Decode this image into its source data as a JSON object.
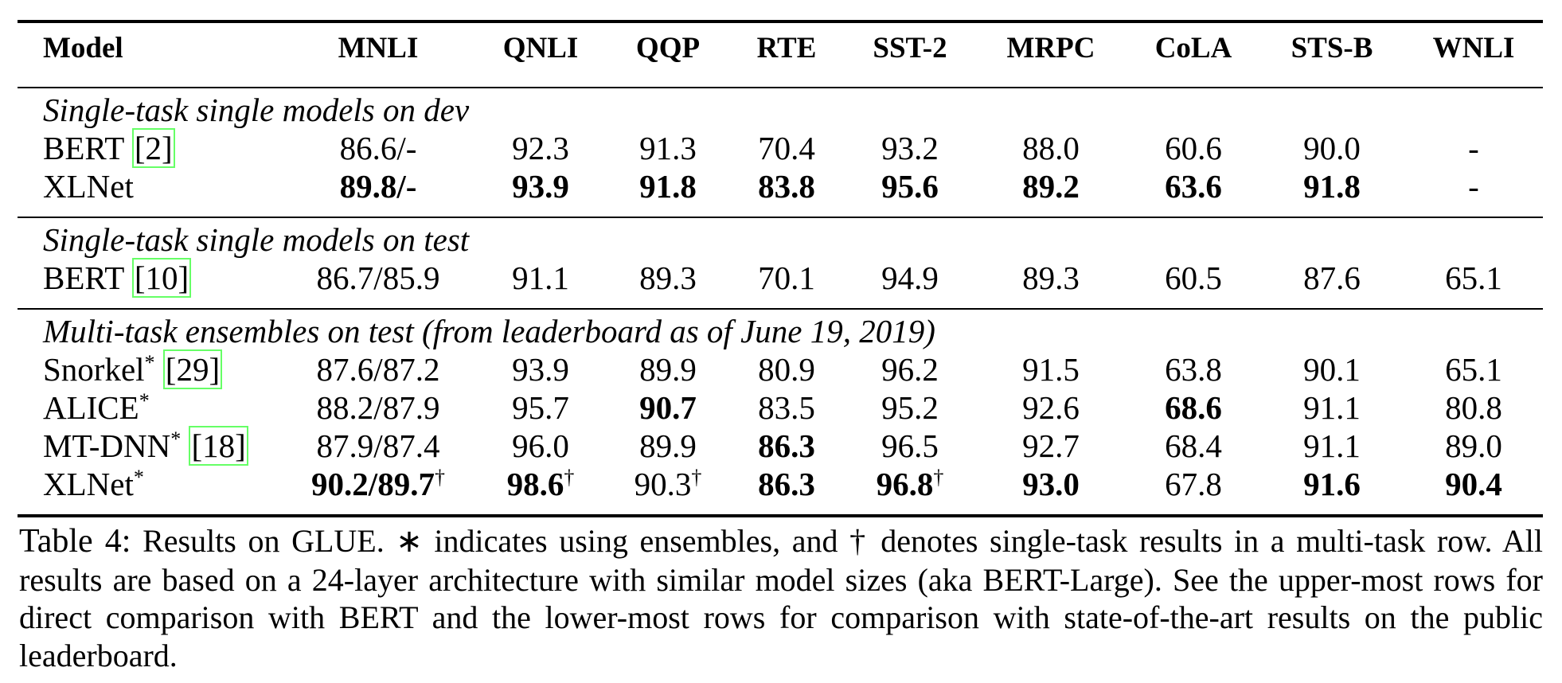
{
  "table": {
    "header": [
      "Model",
      "MNLI",
      "QNLI",
      "QQP",
      "RTE",
      "SST-2",
      "MRPC",
      "CoLA",
      "STS-B",
      "WNLI"
    ],
    "sections": [
      {
        "title": "Single-task single models on dev",
        "rows": [
          {
            "model": "BERT",
            "ref": "[2]",
            "cells": [
              "86.6/-",
              "92.3",
              "91.3",
              "70.4",
              "93.2",
              "88.0",
              "60.6",
              "90.0",
              "-"
            ]
          },
          {
            "model": "XLNet",
            "cells": [
              {
                "text": "89.8/-",
                "bold": true
              },
              {
                "text": "93.9",
                "bold": true
              },
              {
                "text": "91.8",
                "bold": true
              },
              {
                "text": "83.8",
                "bold": true
              },
              {
                "text": "95.6",
                "bold": true
              },
              {
                "text": "89.2",
                "bold": true
              },
              {
                "text": "63.6",
                "bold": true
              },
              {
                "text": "91.8",
                "bold": true
              },
              "-"
            ]
          }
        ]
      },
      {
        "title": "Single-task single models on test",
        "rows": [
          {
            "model": "BERT",
            "ref": "[10]",
            "cells": [
              "86.7/85.9",
              "91.1",
              "89.3",
              "70.1",
              "94.9",
              "89.3",
              "60.5",
              "87.6",
              "65.1"
            ]
          }
        ]
      },
      {
        "title": "Multi-task ensembles on test (from leaderboard as of June 19, 2019)",
        "rows": [
          {
            "model": "Snorkel",
            "model_sup": "*",
            "ref": "[29]",
            "cells": [
              "87.6/87.2",
              "93.9",
              "89.9",
              "80.9",
              "96.2",
              "91.5",
              "63.8",
              "90.1",
              "65.1"
            ]
          },
          {
            "model": "ALICE",
            "model_sup": "*",
            "cells": [
              "88.2/87.9",
              "95.7",
              {
                "text": "90.7",
                "bold": true
              },
              "83.5",
              "95.2",
              "92.6",
              {
                "text": "68.6",
                "bold": true
              },
              "91.1",
              "80.8"
            ]
          },
          {
            "model": "MT-DNN",
            "model_sup": "*",
            "ref": "[18]",
            "cells": [
              "87.9/87.4",
              "96.0",
              "89.9",
              {
                "text": "86.3",
                "bold": true
              },
              "96.5",
              "92.7",
              "68.4",
              "91.1",
              "89.0"
            ]
          },
          {
            "model": "XLNet",
            "model_sup": "*",
            "cells": [
              {
                "text": "90.2/89.7",
                "bold": true,
                "sup": "†"
              },
              {
                "text": "98.6",
                "bold": true,
                "sup": "†"
              },
              {
                "text": "90.3",
                "sup": "†"
              },
              {
                "text": "86.3",
                "bold": true
              },
              {
                "text": "96.8",
                "bold": true,
                "sup": "†"
              },
              {
                "text": "93.0",
                "bold": true
              },
              "67.8",
              {
                "text": "91.6",
                "bold": true
              },
              {
                "text": "90.4",
                "bold": true
              }
            ]
          }
        ]
      }
    ]
  },
  "caption": {
    "label": "Table 4:",
    "text": "Results on GLUE. ∗ indicates using ensembles, and † denotes single-task results in a multi-task row. All results are based on a 24-layer architecture with similar model sizes (aka BERT-Large). See the upper-most rows for direct comparison with BERT and the lower-most rows for comparison with state-of-the-art results on the public leaderboard."
  }
}
